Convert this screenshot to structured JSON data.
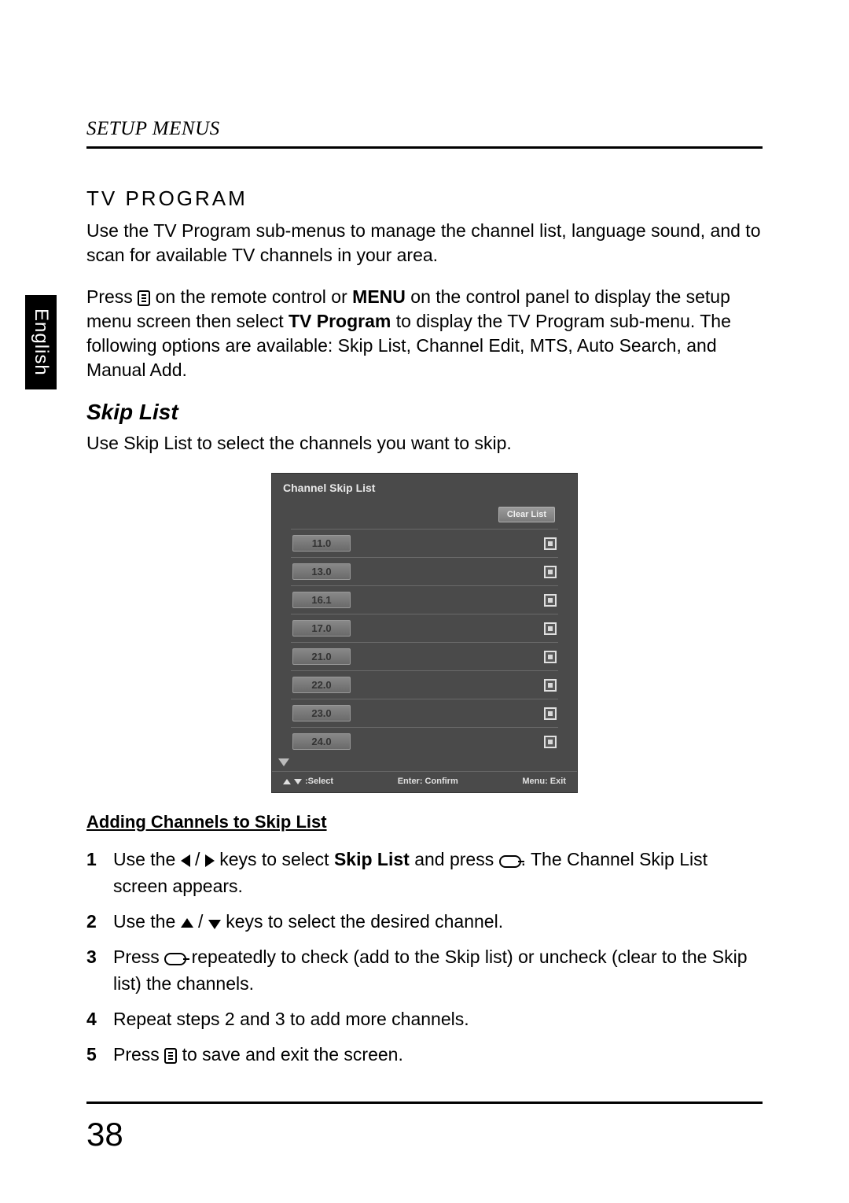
{
  "side_tab": "English",
  "header": "SETUP MENUS",
  "section_title": "TV PROGRAM",
  "para1": "Use the TV Program sub-menus to manage the channel list, language sound, and to scan for available TV channels in your area.",
  "press_pre": "Press ",
  "press_mid1": " on the remote control or ",
  "menu_word": "MENU",
  "press_mid2": " on the control panel to display the setup menu screen then select ",
  "tvprog_word": "TV Program",
  "press_post": " to display the TV Program sub-menu. The following options are available: Skip List, Channel Edit, MTS, Auto Search, and Manual Add.",
  "skip_list_heading": "Skip List",
  "skip_list_desc": "Use Skip List to select the channels you want to skip.",
  "osd": {
    "title": "Channel Skip List",
    "clear_btn": "Clear List",
    "channels": [
      "11.0",
      "13.0",
      "16.1",
      "17.0",
      "21.0",
      "22.0",
      "23.0",
      "24.0"
    ],
    "footer_select": ":Select",
    "footer_enter": "Enter: Confirm",
    "footer_menu": "Menu: Exit"
  },
  "instr_heading": "Adding Channels to Skip List",
  "steps": {
    "s1a": "Use the ",
    "s1b": " keys to select ",
    "s1_bold": "Skip List",
    "s1c": " and press ",
    "s1d": ". The Channel Skip List screen appears.",
    "s2a": "Use the ",
    "s2b": " keys to select the desired channel.",
    "s3a": "Press ",
    "s3b": " repeatedly to check (add to the Skip list) or uncheck (clear to the Skip list) the channels.",
    "s4": "Repeat steps 2 and 3 to add more channels.",
    "s5a": "Press ",
    "s5b": " to save and exit the screen."
  },
  "page_number": "38"
}
